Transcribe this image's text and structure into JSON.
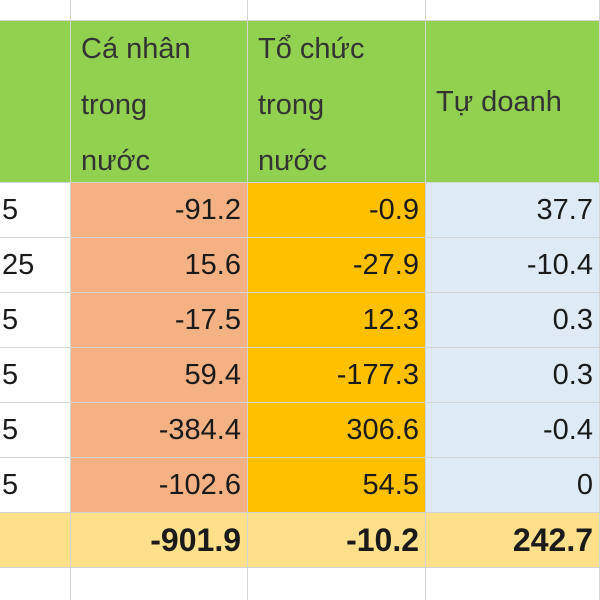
{
  "header": {
    "columns": [
      "Cá nhân trong nước",
      "Tổ chức trong nước",
      "Tự doanh"
    ]
  },
  "table": {
    "rows": [
      [
        "5",
        "-91.2",
        "-0.9",
        "37.7"
      ],
      [
        "25",
        "15.6",
        "-27.9",
        "-10.4"
      ],
      [
        "5",
        "-17.5",
        "12.3",
        "0.3"
      ],
      [
        "5",
        "59.4",
        "-177.3",
        "0.3"
      ],
      [
        "5",
        "-384.4",
        "306.6",
        "-0.4"
      ],
      [
        "5",
        "-102.6",
        "54.5",
        "0"
      ]
    ],
    "total": [
      "-901.9",
      "-10.2",
      "242.7"
    ]
  }
}
